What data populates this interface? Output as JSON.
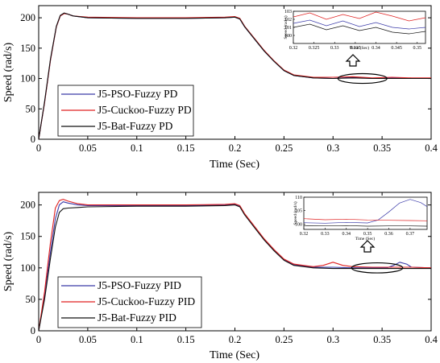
{
  "chart_data": [
    {
      "type": "line",
      "xlabel": "Time (Sec)",
      "ylabel": "Speed (rad/s)",
      "xlim": [
        0,
        0.4
      ],
      "ylim": [
        0,
        220
      ],
      "xticks": [
        "0",
        "0.05",
        "0.1",
        "0.15",
        "0.2",
        "0.25",
        "0.3",
        "0.35",
        "0.4"
      ],
      "yticks": [
        "0",
        "50",
        "100",
        "150",
        "200"
      ],
      "grid": false,
      "legend_position": "lower-left",
      "series": [
        {
          "name": "J5-PSO-Fuzzy PD",
          "color": "#3a3aa8",
          "x": [
            0,
            0.006,
            0.012,
            0.018,
            0.022,
            0.026,
            0.03,
            0.035,
            0.05,
            0.1,
            0.15,
            0.19,
            0.2,
            0.205,
            0.21,
            0.22,
            0.23,
            0.24,
            0.25,
            0.26,
            0.28,
            0.3,
            0.32,
            0.34,
            0.36,
            0.38,
            0.4
          ],
          "y": [
            0,
            60,
            130,
            185,
            203,
            207,
            206,
            203,
            200,
            199,
            199,
            200,
            201,
            198,
            185,
            165,
            145,
            128,
            113,
            105,
            101,
            100,
            102,
            100,
            101,
            100,
            100
          ]
        },
        {
          "name": "J5-Cuckoo-Fuzzy PD",
          "color": "#e02020",
          "x": [
            0,
            0.006,
            0.012,
            0.018,
            0.022,
            0.026,
            0.03,
            0.035,
            0.05,
            0.1,
            0.15,
            0.19,
            0.2,
            0.205,
            0.21,
            0.22,
            0.23,
            0.24,
            0.25,
            0.26,
            0.28,
            0.3,
            0.32,
            0.34,
            0.36,
            0.38,
            0.4
          ],
          "y": [
            0,
            60,
            130,
            185,
            203,
            207,
            206,
            203,
            201,
            200,
            200,
            201,
            202,
            199,
            186,
            166,
            146,
            129,
            114,
            106,
            102,
            102,
            103,
            101,
            102,
            101,
            101
          ]
        },
        {
          "name": "J5-Bat-Fuzzy PD",
          "color": "#111111",
          "x": [
            0,
            0.006,
            0.012,
            0.018,
            0.022,
            0.026,
            0.03,
            0.035,
            0.05,
            0.1,
            0.15,
            0.19,
            0.2,
            0.205,
            0.21,
            0.22,
            0.23,
            0.24,
            0.25,
            0.26,
            0.28,
            0.3,
            0.32,
            0.34,
            0.36,
            0.38,
            0.4
          ],
          "y": [
            0,
            62,
            132,
            186,
            204,
            208,
            206,
            203,
            200,
            199,
            199,
            200,
            201,
            198,
            185,
            165,
            145,
            128,
            113,
            105,
            101,
            100,
            101,
            100,
            100,
            100,
            100
          ]
        }
      ],
      "annotation_ellipse": {
        "cx": 0.33,
        "cy": 100,
        "rx": 0.025,
        "ry": 8
      },
      "inset": {
        "xlim": [
          0.32,
          0.352
        ],
        "ylim": [
          99,
          103
        ],
        "xlabel": "Time (Sec)",
        "ylabel": "Speed (rad/s)",
        "xticks": [
          "0.32",
          "0.325",
          "0.33",
          "0.335",
          "0.34",
          "0.345",
          "0.35"
        ],
        "yticks": [
          "100",
          "101",
          "102",
          "103"
        ],
        "series": [
          {
            "color": "#3a3aa8",
            "x": [
              0.32,
              0.324,
              0.328,
              0.332,
              0.336,
              0.34,
              0.344,
              0.348,
              0.352
            ],
            "y": [
              101.5,
              101.9,
              101.2,
              101.8,
              101.1,
              101.6,
              101.0,
              100.8,
              101.0
            ]
          },
          {
            "color": "#e02020",
            "x": [
              0.32,
              0.324,
              0.328,
              0.332,
              0.336,
              0.34,
              0.344,
              0.348,
              0.352
            ],
            "y": [
              102.3,
              102.8,
              102.0,
              102.6,
              102.1,
              102.9,
              102.4,
              101.8,
              102.2
            ]
          },
          {
            "color": "#111111",
            "x": [
              0.32,
              0.324,
              0.328,
              0.332,
              0.336,
              0.34,
              0.344,
              0.348,
              0.352
            ],
            "y": [
              101.0,
              101.4,
              100.7,
              101.2,
              100.6,
              101.0,
              100.4,
              100.2,
              100.5
            ]
          }
        ]
      }
    },
    {
      "type": "line",
      "xlabel": "Time (Sec)",
      "ylabel": "Speed (rad/s)",
      "xlim": [
        0,
        0.4
      ],
      "ylim": [
        0,
        220
      ],
      "xticks": [
        "0",
        "0.05",
        "0.1",
        "0.15",
        "0.2",
        "0.25",
        "0.3",
        "0.35",
        "0.4"
      ],
      "yticks": [
        "0",
        "50",
        "100",
        "150",
        "200"
      ],
      "grid": false,
      "legend_position": "lower-left",
      "series": [
        {
          "name": "J5-PSO-Fuzzy PID",
          "color": "#3a3aa8",
          "x": [
            0,
            0.006,
            0.012,
            0.017,
            0.021,
            0.025,
            0.03,
            0.04,
            0.05,
            0.1,
            0.15,
            0.19,
            0.2,
            0.205,
            0.21,
            0.22,
            0.23,
            0.24,
            0.25,
            0.26,
            0.28,
            0.3,
            0.32,
            0.34,
            0.355,
            0.362,
            0.368,
            0.375,
            0.38,
            0.4
          ],
          "y": [
            0,
            55,
            125,
            178,
            200,
            205,
            203,
            200,
            199,
            199,
            199,
            200,
            201,
            198,
            185,
            165,
            145,
            128,
            113,
            105,
            101,
            101,
            100,
            100,
            100,
            104,
            109,
            106,
            101,
            100
          ]
        },
        {
          "name": "J5-Cuckoo-Fuzzy PID",
          "color": "#e02020",
          "x": [
            0,
            0.006,
            0.012,
            0.017,
            0.021,
            0.025,
            0.03,
            0.04,
            0.05,
            0.1,
            0.15,
            0.19,
            0.2,
            0.205,
            0.21,
            0.22,
            0.23,
            0.24,
            0.25,
            0.26,
            0.28,
            0.29,
            0.3,
            0.31,
            0.32,
            0.34,
            0.36,
            0.38,
            0.4
          ],
          "y": [
            0,
            62,
            140,
            195,
            207,
            209,
            206,
            202,
            200,
            200,
            200,
            201,
            202,
            199,
            186,
            166,
            146,
            129,
            114,
            106,
            102,
            104,
            109,
            104,
            102,
            101,
            101,
            101,
            100
          ]
        },
        {
          "name": "J5-Bat-Fuzzy PID",
          "color": "#111111",
          "x": [
            0,
            0.006,
            0.012,
            0.017,
            0.021,
            0.025,
            0.03,
            0.04,
            0.05,
            0.1,
            0.15,
            0.19,
            0.2,
            0.205,
            0.21,
            0.22,
            0.23,
            0.24,
            0.25,
            0.26,
            0.28,
            0.3,
            0.32,
            0.34,
            0.36,
            0.38,
            0.4
          ],
          "y": [
            0,
            50,
            115,
            165,
            188,
            194,
            195,
            196,
            197,
            198,
            198,
            199,
            200,
            197,
            184,
            164,
            144,
            127,
            112,
            104,
            100,
            99,
            99,
            99,
            99,
            99,
            99
          ]
        }
      ],
      "annotation_ellipse": {
        "cx": 0.345,
        "cy": 100,
        "rx": 0.026,
        "ry": 8
      },
      "inset": {
        "xlim": [
          0.32,
          0.378
        ],
        "ylim": [
          98,
          110
        ],
        "xlabel": "Time (Sec)",
        "ylabel": "Speed (rad/s)",
        "xticks": [
          "0.32",
          "0.33",
          "0.34",
          "0.35",
          "0.36",
          "0.37"
        ],
        "yticks": [
          "100",
          "105",
          "110"
        ],
        "series": [
          {
            "color": "#3a3aa8",
            "x": [
              0.32,
              0.33,
              0.34,
              0.35,
              0.355,
              0.36,
              0.365,
              0.37,
              0.375,
              0.378
            ],
            "y": [
              100.5,
              100.3,
              100.6,
              100.4,
              101.5,
              104.5,
              107.8,
              109.2,
              108.0,
              106.5
            ]
          },
          {
            "color": "#e02020",
            "x": [
              0.32,
              0.33,
              0.34,
              0.35,
              0.36,
              0.37,
              0.378
            ],
            "y": [
              102.0,
              101.6,
              101.8,
              101.5,
              101.4,
              101.3,
              101.2
            ]
          },
          {
            "color": "#111111",
            "x": [
              0.32,
              0.33,
              0.34,
              0.35,
              0.36,
              0.37,
              0.378
            ],
            "y": [
              99.4,
              99.3,
              99.4,
              99.2,
              99.3,
              99.3,
              99.2
            ]
          }
        ]
      }
    }
  ]
}
